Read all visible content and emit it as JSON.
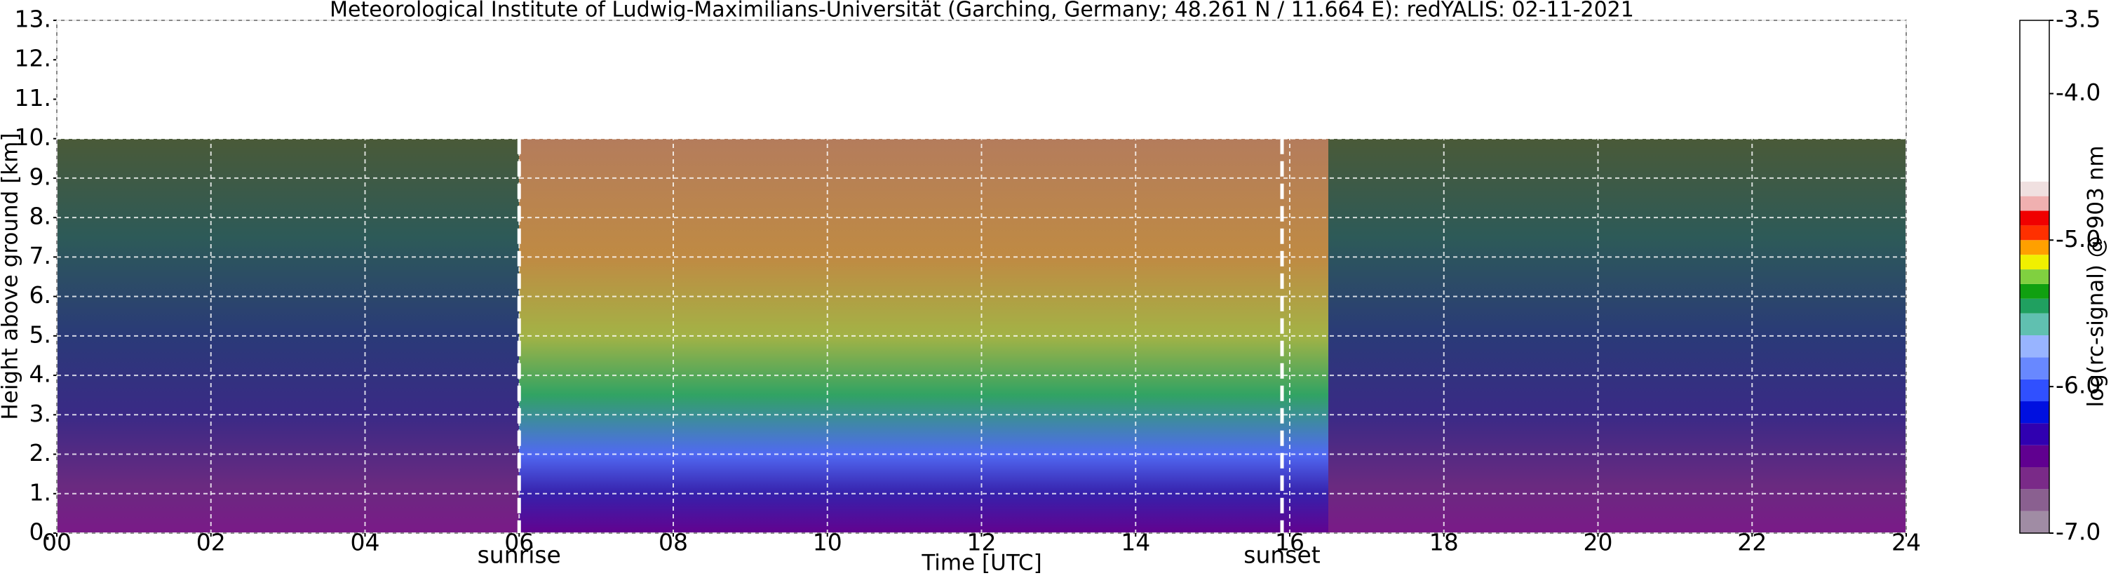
{
  "chart_data": {
    "type": "heatmap",
    "title": "Meteorological Institute of Ludwig-Maximilians-Universität (Garching, Germany; 48.261 N / 11.664 E):    redYALIS: 02-11-2021",
    "x_label": "Time [UTC]",
    "y_label": "Height above ground [km]",
    "xlim": [
      0,
      24
    ],
    "xticks": [
      {
        "value": 0,
        "label": "00"
      },
      {
        "value": 2,
        "label": "02"
      },
      {
        "value": 4,
        "label": "04"
      },
      {
        "value": 6,
        "label": "06"
      },
      {
        "value": 8,
        "label": "08"
      },
      10,
      12,
      14,
      16,
      18,
      20,
      22,
      24
    ],
    "ylim": [
      0,
      13
    ],
    "yticks": [
      {
        "value": 0,
        "label": "0."
      },
      {
        "value": 1,
        "label": "1."
      },
      {
        "value": 2,
        "label": "2."
      },
      {
        "value": 3,
        "label": "3."
      },
      {
        "value": 4,
        "label": "4."
      },
      {
        "value": 5,
        "label": "5."
      },
      {
        "value": 6,
        "label": "6."
      },
      {
        "value": 7,
        "label": "7."
      },
      {
        "value": 8,
        "label": "8."
      },
      {
        "value": 9,
        "label": "9."
      },
      {
        "value": 10,
        "label": "10."
      },
      {
        "value": 11,
        "label": "11."
      },
      {
        "value": 12,
        "label": "12."
      },
      {
        "value": 13,
        "label": "13."
      }
    ],
    "grid": true,
    "annotations": [
      {
        "text": "sunrise",
        "x": 6.0
      },
      {
        "text": "sunset",
        "x": 15.9
      }
    ],
    "colorbar": {
      "label": "log(rc-signal) @ 903 nm",
      "lim": [
        -7.0,
        -3.5
      ],
      "ticks": [
        {
          "value": -7.0,
          "label": "-7.0"
        },
        {
          "value": -6.0,
          "label": "-6.0"
        },
        {
          "value": -5.0,
          "label": "-5.0"
        },
        {
          "value": -4.0,
          "label": "-4.0"
        },
        -3.5
      ],
      "colorscale": [
        {
          "value": -7.0,
          "color": "#a08ca4"
        },
        {
          "value": -6.85,
          "color": "#8a6090"
        },
        {
          "value": -6.7,
          "color": "#7a2a88"
        },
        {
          "value": -6.55,
          "color": "#600090"
        },
        {
          "value": -6.4,
          "color": "#3000b0"
        },
        {
          "value": -6.25,
          "color": "#0010e0"
        },
        {
          "value": -6.1,
          "color": "#3050ff"
        },
        {
          "value": -5.95,
          "color": "#6888ff"
        },
        {
          "value": -5.8,
          "color": "#98b4ff"
        },
        {
          "value": -5.65,
          "color": "#60c0b0"
        },
        {
          "value": -5.5,
          "color": "#20a060"
        },
        {
          "value": -5.4,
          "color": "#10a010"
        },
        {
          "value": -5.3,
          "color": "#80d040"
        },
        {
          "value": -5.2,
          "color": "#f0f000"
        },
        {
          "value": -5.1,
          "color": "#ffa000"
        },
        {
          "value": -5.0,
          "color": "#ff3000"
        },
        {
          "value": -4.9,
          "color": "#f00000"
        },
        {
          "value": -4.8,
          "color": "#f0b0b0"
        },
        {
          "value": -4.7,
          "color": "#f0e0e0"
        },
        {
          "value": -4.6,
          "color": "#ffffff"
        }
      ]
    }
  }
}
